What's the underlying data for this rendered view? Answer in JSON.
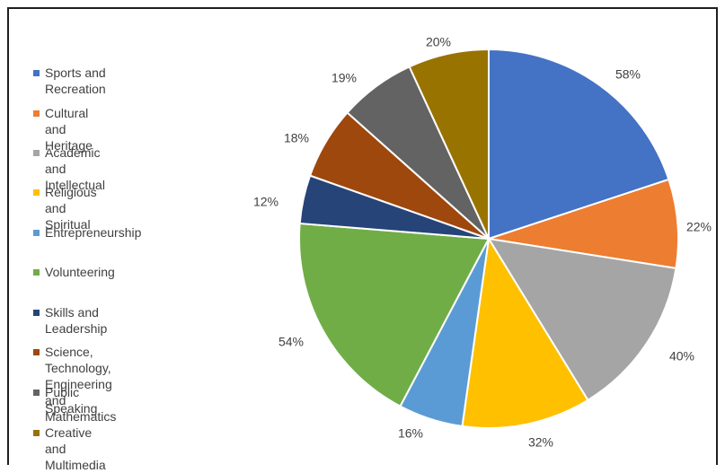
{
  "chart_data": {
    "type": "pie",
    "title": "",
    "legend_position": "left",
    "slices": [
      {
        "label": "Sports and Recreation",
        "value": 58,
        "display": "58%",
        "color": "#4472C4"
      },
      {
        "label": "Cultural and Heritage",
        "value": 22,
        "display": "22%",
        "color": "#ED7D31"
      },
      {
        "label": "Academic and Intellectual",
        "value": 40,
        "display": "40%",
        "color": "#A5A5A5"
      },
      {
        "label": "Religious and Spiritual",
        "value": 32,
        "display": "32%",
        "color": "#FFC000"
      },
      {
        "label": "Entrepreneurship",
        "value": 16,
        "display": "16%",
        "color": "#5B9BD5"
      },
      {
        "label": "Volunteering",
        "value": 54,
        "display": "54%",
        "color": "#70AD47"
      },
      {
        "label": "Skills and Leadership",
        "value": 12,
        "display": "12%",
        "color": "#264478"
      },
      {
        "label": "Science, Technology,\nEngineering and Mathematics",
        "value": 18,
        "display": "18%",
        "color": "#9E480E"
      },
      {
        "label": "Public Speaking",
        "value": 19,
        "display": "19%",
        "color": "#636363"
      },
      {
        "label": "Creative and Multimedia",
        "value": 20,
        "display": "20%",
        "color": "#997300"
      }
    ]
  }
}
